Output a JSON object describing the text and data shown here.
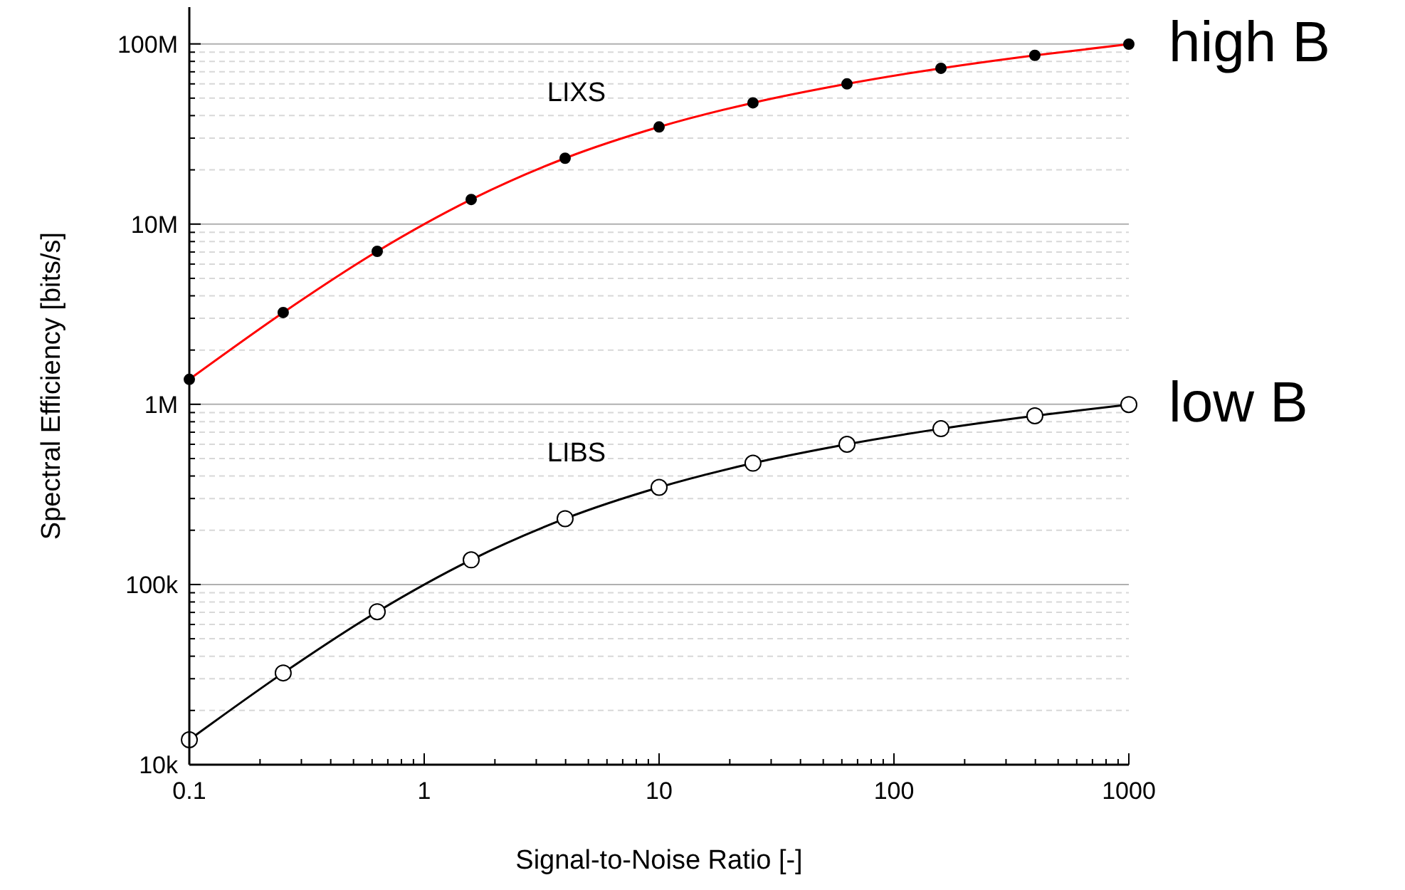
{
  "chart_data": {
    "type": "line",
    "xlabel": "Signal-to-Noise Ratio [-]",
    "ylabel": "Spectral Efficiency [bits/s]",
    "log": "xy",
    "grid": "y",
    "marker": "circle",
    "line_style": "solid",
    "xlim": [
      0.1,
      1000
    ],
    "ylim": [
      10000,
      160000000
    ],
    "xticks": [
      0.1,
      {
        "value": 0.2,
        "label": null
      },
      {
        "value": 0.3,
        "label": null
      },
      {
        "value": 0.4,
        "label": null
      },
      {
        "value": 0.5,
        "label": null
      },
      {
        "value": 0.6,
        "label": null
      },
      {
        "value": 0.7,
        "label": null
      },
      {
        "value": 0.8,
        "label": null
      },
      {
        "value": 0.9,
        "label": null
      },
      1,
      {
        "value": 2,
        "label": null
      },
      {
        "value": 3,
        "label": null
      },
      {
        "value": 4,
        "label": null
      },
      {
        "value": 5,
        "label": null
      },
      {
        "value": 6,
        "label": null
      },
      {
        "value": 7,
        "label": null
      },
      {
        "value": 8,
        "label": null
      },
      {
        "value": 9,
        "label": null
      },
      10,
      {
        "value": 20,
        "label": null
      },
      {
        "value": 30,
        "label": null
      },
      {
        "value": 40,
        "label": null
      },
      {
        "value": 50,
        "label": null
      },
      {
        "value": 60,
        "label": null
      },
      {
        "value": 70,
        "label": null
      },
      {
        "value": 80,
        "label": null
      },
      {
        "value": 90,
        "label": null
      },
      100,
      {
        "value": 200,
        "label": null
      },
      {
        "value": 300,
        "label": null
      },
      {
        "value": 400,
        "label": null
      },
      {
        "value": 500,
        "label": null
      },
      {
        "value": 600,
        "label": null
      },
      {
        "value": 700,
        "label": null
      },
      {
        "value": 800,
        "label": null
      },
      {
        "value": 900,
        "label": null
      },
      1000
    ],
    "yticks": [
      {
        "value": 10000,
        "label": "10k"
      },
      {
        "value": 20000,
        "label": null
      },
      {
        "value": 30000,
        "label": null
      },
      {
        "value": 40000,
        "label": null
      },
      {
        "value": 50000,
        "label": null
      },
      {
        "value": 60000,
        "label": null
      },
      {
        "value": 70000,
        "label": null
      },
      {
        "value": 80000,
        "label": null
      },
      {
        "value": 90000,
        "label": null
      },
      {
        "value": 100000,
        "label": "100k"
      },
      {
        "value": 200000,
        "label": null
      },
      {
        "value": 300000,
        "label": null
      },
      {
        "value": 400000,
        "label": null
      },
      {
        "value": 500000,
        "label": null
      },
      {
        "value": 600000,
        "label": null
      },
      {
        "value": 700000,
        "label": null
      },
      {
        "value": 800000,
        "label": null
      },
      {
        "value": 900000,
        "label": null
      },
      {
        "value": 1000000,
        "label": "1M"
      },
      {
        "value": 2000000,
        "label": null
      },
      {
        "value": 3000000,
        "label": null
      },
      {
        "value": 4000000,
        "label": null
      },
      {
        "value": 5000000,
        "label": null
      },
      {
        "value": 6000000,
        "label": null
      },
      {
        "value": 7000000,
        "label": null
      },
      {
        "value": 8000000,
        "label": null
      },
      {
        "value": 9000000,
        "label": null
      },
      {
        "value": 10000000,
        "label": "10M"
      },
      {
        "value": 20000000,
        "label": null
      },
      {
        "value": 30000000,
        "label": null
      },
      {
        "value": 40000000,
        "label": null
      },
      {
        "value": 50000000,
        "label": null
      },
      {
        "value": 60000000,
        "label": null
      },
      {
        "value": 70000000,
        "label": null
      },
      {
        "value": 80000000,
        "label": null
      },
      {
        "value": 90000000,
        "label": null
      },
      {
        "value": 100000000,
        "label": "100M"
      }
    ],
    "x": [
      0.1,
      0.251,
      0.631,
      1.585,
      3.98,
      10,
      25.1,
      63.1,
      158.5,
      398,
      1000
    ],
    "series": [
      {
        "name": "LIXS",
        "color": "#ff0000",
        "values": [
          1375000,
          3230000,
          7060000,
          13700000,
          23200000,
          34600000,
          47100000,
          60000000,
          73200000,
          86400000,
          99700000
        ]
      },
      {
        "name": "LIBS",
        "color": "#000000",
        "values": [
          13750,
          32300,
          70600,
          137000,
          232000,
          346000,
          471000,
          600000,
          732000,
          864000,
          997000
        ]
      }
    ],
    "annotations": [
      "high B",
      "low B"
    ]
  }
}
